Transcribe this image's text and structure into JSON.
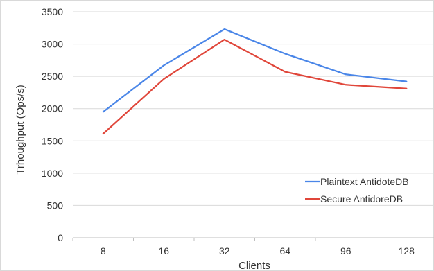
{
  "chart_data": {
    "type": "line",
    "categories": [
      "8",
      "16",
      "32",
      "64",
      "96",
      "128"
    ],
    "series": [
      {
        "name": "Plaintext AntidoteDB",
        "color": "#4a86e8",
        "values": [
          1950,
          2670,
          3230,
          2850,
          2530,
          2420
        ]
      },
      {
        "name": "Secure AntidoreDB",
        "color": "#e0463a",
        "values": [
          1610,
          2460,
          3070,
          2570,
          2370,
          2310
        ]
      }
    ],
    "title": "",
    "xlabel": "Clients",
    "ylabel": "Trhoughput (Ops/s)",
    "ylim": [
      0,
      3500
    ],
    "yticks": [
      0,
      500,
      1000,
      1500,
      2000,
      2500,
      3000,
      3500
    ],
    "grid": true,
    "legend_position": "right"
  }
}
